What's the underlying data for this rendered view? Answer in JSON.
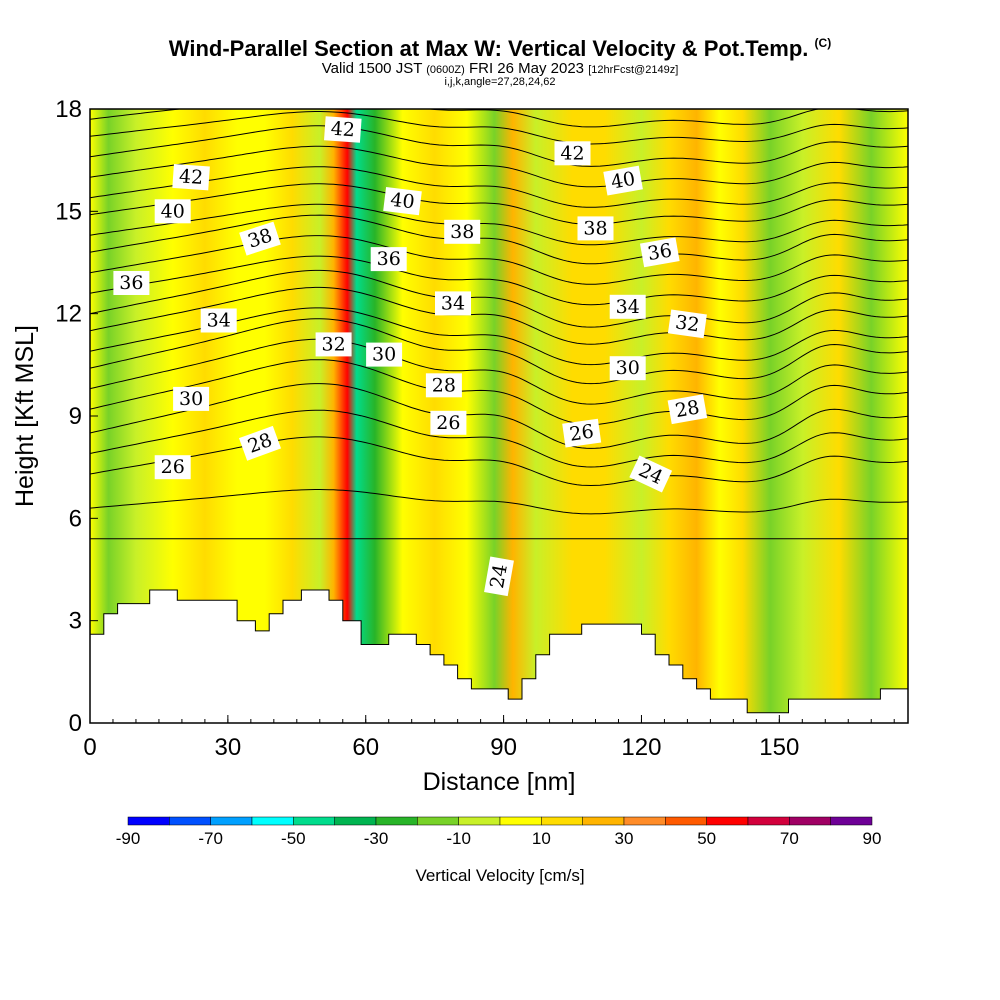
{
  "title": {
    "main": "Wind-Parallel Section at Max W: Vertical Velocity & Pot.Temp.",
    "copyright": "(C)",
    "valid_prefix": "Valid 1500 JST",
    "valid_utc": "(0600Z)",
    "valid_date": "FRI 26 May 2023",
    "forecast": "[12hrFcst@2149z]",
    "indices": "i,j,k,angle=27,28,24,62"
  },
  "chart_data": {
    "type": "heatmap",
    "xlabel": "Distance [nm]",
    "ylabel": "Height [Kft MSL]",
    "xlim": [
      0,
      178
    ],
    "ylim": [
      0,
      18
    ],
    "xticks": [
      0,
      30,
      60,
      90,
      120,
      150
    ],
    "yticks": [
      0,
      3,
      6,
      9,
      12,
      15,
      18
    ],
    "colorbar": {
      "label": "Vertical Velocity [cm/s]",
      "ticks": [
        -90,
        -70,
        -50,
        -30,
        -10,
        10,
        30,
        50,
        70,
        90
      ],
      "range": [
        -90,
        90
      ],
      "step": 10,
      "colors": [
        "#0000ff",
        "#0050ff",
        "#00a0ff",
        "#00ffff",
        "#00dc8c",
        "#00b450",
        "#28b428",
        "#78d228",
        "#c8f028",
        "#ffff00",
        "#ffdc00",
        "#ffb400",
        "#ff8c28",
        "#ff5a00",
        "#ff0000",
        "#d2003c",
        "#a00064",
        "#6e0096"
      ]
    },
    "velocity_columns": [
      {
        "x": 0,
        "value": 0
      },
      {
        "x": 4,
        "value": -20
      },
      {
        "x": 10,
        "value": -8
      },
      {
        "x": 18,
        "value": 4
      },
      {
        "x": 25,
        "value": 14
      },
      {
        "x": 32,
        "value": 2
      },
      {
        "x": 38,
        "value": 6
      },
      {
        "x": 44,
        "value": 14
      },
      {
        "x": 50,
        "value": -10
      },
      {
        "x": 53,
        "value": 22
      },
      {
        "x": 56,
        "value": 55
      },
      {
        "x": 58,
        "value": -45
      },
      {
        "x": 62,
        "value": -24
      },
      {
        "x": 68,
        "value": 4
      },
      {
        "x": 75,
        "value": 14
      },
      {
        "x": 82,
        "value": 8
      },
      {
        "x": 88,
        "value": -12
      },
      {
        "x": 92,
        "value": 24
      },
      {
        "x": 97,
        "value": -6
      },
      {
        "x": 105,
        "value": 10
      },
      {
        "x": 112,
        "value": 14
      },
      {
        "x": 120,
        "value": -10
      },
      {
        "x": 126,
        "value": 18
      },
      {
        "x": 132,
        "value": 24
      },
      {
        "x": 137,
        "value": 2
      },
      {
        "x": 142,
        "value": 12
      },
      {
        "x": 148,
        "value": -16
      },
      {
        "x": 155,
        "value": -4
      },
      {
        "x": 163,
        "value": 10
      },
      {
        "x": 170,
        "value": -12
      },
      {
        "x": 178,
        "value": 6
      }
    ],
    "terrain": [
      [
        0,
        2.6
      ],
      [
        3,
        2.6
      ],
      [
        3,
        3.2
      ],
      [
        6,
        3.2
      ],
      [
        6,
        3.5
      ],
      [
        13,
        3.5
      ],
      [
        13,
        3.9
      ],
      [
        19,
        3.9
      ],
      [
        19,
        3.6
      ],
      [
        32,
        3.6
      ],
      [
        32,
        3.0
      ],
      [
        36,
        3.0
      ],
      [
        36,
        2.7
      ],
      [
        39,
        2.7
      ],
      [
        39,
        3.2
      ],
      [
        42,
        3.2
      ],
      [
        42,
        3.6
      ],
      [
        46,
        3.6
      ],
      [
        46,
        3.9
      ],
      [
        52,
        3.9
      ],
      [
        52,
        3.6
      ],
      [
        55,
        3.6
      ],
      [
        55,
        3.0
      ],
      [
        59,
        3.0
      ],
      [
        59,
        2.3
      ],
      [
        65,
        2.3
      ],
      [
        65,
        2.6
      ],
      [
        71,
        2.6
      ],
      [
        71,
        2.3
      ],
      [
        74,
        2.3
      ],
      [
        74,
        2.0
      ],
      [
        77,
        2.0
      ],
      [
        77,
        1.7
      ],
      [
        80,
        1.7
      ],
      [
        80,
        1.3
      ],
      [
        83,
        1.3
      ],
      [
        83,
        1.0
      ],
      [
        91,
        1.0
      ],
      [
        91,
        0.7
      ],
      [
        94,
        0.7
      ],
      [
        94,
        1.3
      ],
      [
        97,
        1.3
      ],
      [
        97,
        2.0
      ],
      [
        100,
        2.0
      ],
      [
        100,
        2.6
      ],
      [
        107,
        2.6
      ],
      [
        107,
        2.9
      ],
      [
        120,
        2.9
      ],
      [
        120,
        2.6
      ],
      [
        123,
        2.6
      ],
      [
        123,
        2.0
      ],
      [
        126,
        2.0
      ],
      [
        126,
        1.7
      ],
      [
        129,
        1.7
      ],
      [
        129,
        1.3
      ],
      [
        132,
        1.3
      ],
      [
        132,
        1.0
      ],
      [
        135,
        1.0
      ],
      [
        135,
        0.7
      ],
      [
        143,
        0.7
      ],
      [
        143,
        0.3
      ],
      [
        152,
        0.3
      ],
      [
        152,
        0.7
      ],
      [
        172,
        0.7
      ],
      [
        172,
        1.0
      ],
      [
        178,
        1.0
      ]
    ],
    "isentropes": [
      {
        "theta": 24,
        "base": 5.4,
        "lift": 0.0
      },
      {
        "theta": 25,
        "base": 6.3,
        "lift": 0.3
      },
      {
        "theta": 26,
        "base": 7.3,
        "lift": 0.6
      },
      {
        "theta": 27,
        "base": 7.9,
        "lift": 0.7
      },
      {
        "theta": 28,
        "base": 8.5,
        "lift": 0.8
      },
      {
        "theta": 29,
        "base": 9.2,
        "lift": 0.8
      },
      {
        "theta": 30,
        "base": 9.8,
        "lift": 0.8
      },
      {
        "theta": 31,
        "base": 10.4,
        "lift": 0.8
      },
      {
        "theta": 32,
        "base": 10.9,
        "lift": 0.7
      },
      {
        "theta": 33,
        "base": 11.5,
        "lift": 0.7
      },
      {
        "theta": 34,
        "base": 12.0,
        "lift": 0.7
      },
      {
        "theta": 35,
        "base": 12.6,
        "lift": 0.6
      },
      {
        "theta": 36,
        "base": 13.2,
        "lift": 0.6
      },
      {
        "theta": 37,
        "base": 13.8,
        "lift": 0.6
      },
      {
        "theta": 38,
        "base": 14.3,
        "lift": 0.5
      },
      {
        "theta": 39,
        "base": 14.9,
        "lift": 0.5
      },
      {
        "theta": 40,
        "base": 15.4,
        "lift": 0.5
      },
      {
        "theta": 41,
        "base": 16.0,
        "lift": 0.5
      },
      {
        "theta": 42,
        "base": 16.6,
        "lift": 0.5
      },
      {
        "theta": 43,
        "base": 17.2,
        "lift": 0.4
      },
      {
        "theta": 44,
        "base": 17.7,
        "lift": 0.4
      }
    ],
    "contour_labels": [
      {
        "text": "42",
        "x": 22,
        "y": 16.0,
        "angle": 4
      },
      {
        "text": "40",
        "x": 18,
        "y": 15.0,
        "angle": 0
      },
      {
        "text": "38",
        "x": 37,
        "y": 14.2,
        "angle": -18
      },
      {
        "text": "36",
        "x": 9,
        "y": 12.9,
        "angle": 0
      },
      {
        "text": "34",
        "x": 28,
        "y": 11.8,
        "angle": 0
      },
      {
        "text": "32",
        "x": 53,
        "y": 11.1,
        "angle": 0
      },
      {
        "text": "30",
        "x": 22,
        "y": 9.5,
        "angle": 0
      },
      {
        "text": "28",
        "x": 37,
        "y": 8.2,
        "angle": -20
      },
      {
        "text": "26",
        "x": 18,
        "y": 7.5,
        "angle": 0
      },
      {
        "text": "42",
        "x": 55,
        "y": 17.4,
        "angle": 4
      },
      {
        "text": "40",
        "x": 68,
        "y": 15.3,
        "angle": 7
      },
      {
        "text": "36",
        "x": 65,
        "y": 13.6,
        "angle": 0
      },
      {
        "text": "38",
        "x": 81,
        "y": 14.4,
        "angle": 0
      },
      {
        "text": "34",
        "x": 79,
        "y": 12.3,
        "angle": 0
      },
      {
        "text": "30",
        "x": 64,
        "y": 10.8,
        "angle": 0
      },
      {
        "text": "28",
        "x": 77,
        "y": 9.9,
        "angle": 0
      },
      {
        "text": "26",
        "x": 78,
        "y": 8.8,
        "angle": 0
      },
      {
        "text": "24",
        "x": 89,
        "y": 4.3,
        "angle": -80
      },
      {
        "text": "42",
        "x": 105,
        "y": 16.7,
        "angle": 0
      },
      {
        "text": "40",
        "x": 116,
        "y": 15.9,
        "angle": -10
      },
      {
        "text": "38",
        "x": 110,
        "y": 14.5,
        "angle": 0
      },
      {
        "text": "36",
        "x": 124,
        "y": 13.8,
        "angle": -10
      },
      {
        "text": "34",
        "x": 117,
        "y": 12.2,
        "angle": 0
      },
      {
        "text": "32",
        "x": 130,
        "y": 11.7,
        "angle": 8
      },
      {
        "text": "30",
        "x": 117,
        "y": 10.4,
        "angle": 0
      },
      {
        "text": "28",
        "x": 130,
        "y": 9.2,
        "angle": -10
      },
      {
        "text": "26",
        "x": 107,
        "y": 8.5,
        "angle": -8
      },
      {
        "text": "24",
        "x": 122,
        "y": 7.3,
        "angle": 25
      }
    ]
  }
}
